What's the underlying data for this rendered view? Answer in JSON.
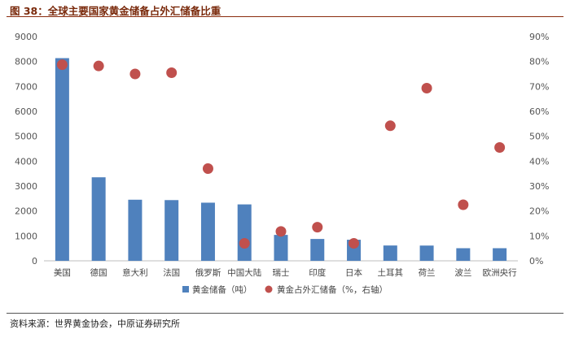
{
  "header": {
    "figure_label": "图 38：",
    "title": "全球主要国家黄金储备占外汇储备比重"
  },
  "source": "资料来源：世界黄金协会，中原证券研究所",
  "chart_data": {
    "type": "bar",
    "categories": [
      "美国",
      "德国",
      "意大利",
      "法国",
      "俄罗斯",
      "中国大陆",
      "瑞士",
      "印度",
      "日本",
      "土耳其",
      "荷兰",
      "波兰",
      "欧洲央行"
    ],
    "series": [
      {
        "name": "黄金储备（吨）",
        "type": "bar",
        "axis": "left",
        "color": "#4f81bd",
        "values": [
          8134,
          3352,
          2452,
          2437,
          2333,
          2264,
          1040,
          877,
          846,
          615,
          612,
          506,
          506
        ]
      },
      {
        "name": "黄金占外汇储备（%，右轴）",
        "type": "scatter",
        "axis": "right",
        "color": "#c0504d",
        "values": [
          78.7,
          78.2,
          75.0,
          75.5,
          37.0,
          7.0,
          11.8,
          13.5,
          7.0,
          54.2,
          69.3,
          22.5,
          45.5
        ]
      }
    ],
    "y_left": {
      "ylim": [
        0,
        9000
      ],
      "ticks": [
        "0",
        "1000",
        "2000",
        "3000",
        "4000",
        "5000",
        "6000",
        "7000",
        "8000",
        "9000"
      ]
    },
    "y_right": {
      "ylim": [
        0,
        90
      ],
      "ticks": [
        "0%",
        "10%",
        "20%",
        "30%",
        "40%",
        "50%",
        "60%",
        "70%",
        "80%",
        "90%"
      ]
    },
    "grid": false,
    "legend_position": "bottom"
  }
}
